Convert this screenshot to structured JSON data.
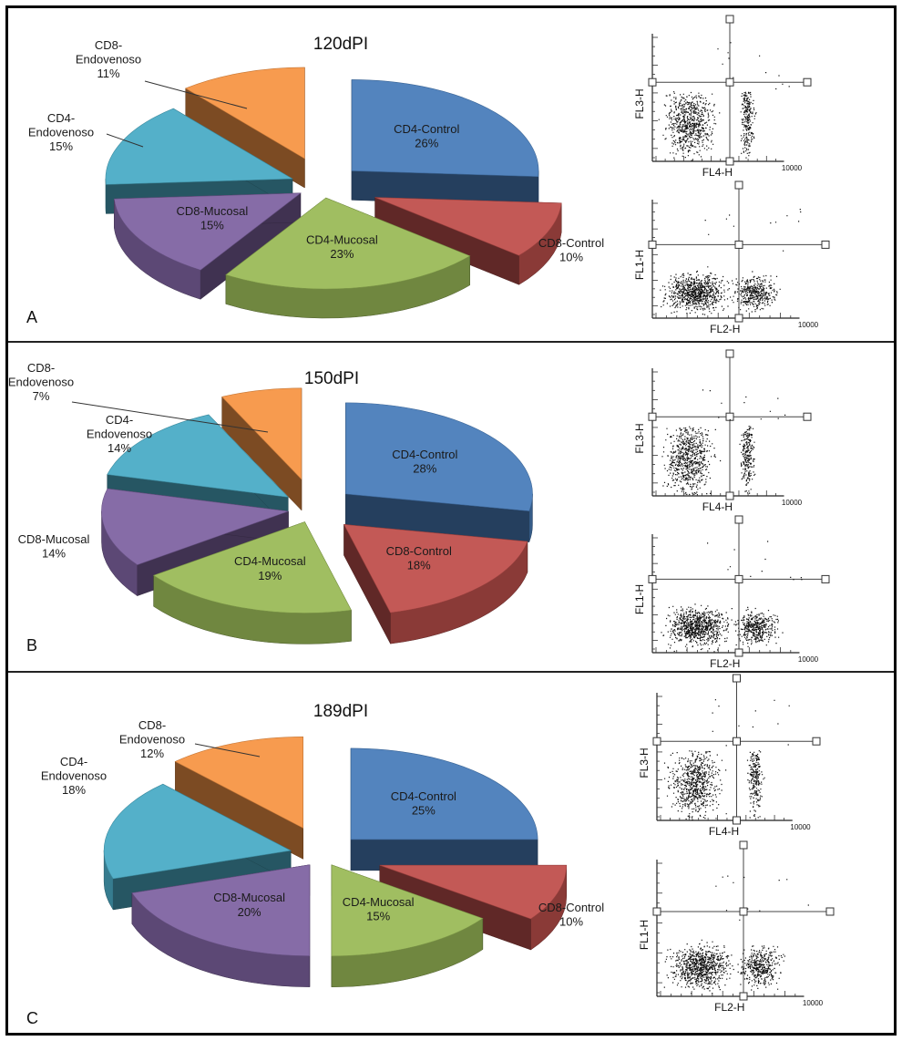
{
  "chart_data": [
    {
      "type": "pie",
      "panel": "A",
      "title": "120dPI",
      "slices": [
        {
          "label": "CD4-Control",
          "value": 26,
          "value_label": "26%",
          "color": "#4a7ebb"
        },
        {
          "label": "CD8-Control",
          "value": 10,
          "value_label": "10%",
          "color": "#c0504d"
        },
        {
          "label": "CD4-Mucosal",
          "value": 23,
          "value_label": "23%",
          "color": "#9bbb59"
        },
        {
          "label": "CD8-Mucosal",
          "value": 15,
          "value_label": "15%",
          "color": "#8064a2"
        },
        {
          "label": "CD4-\nEndovenoso",
          "value": 15,
          "value_label": "15%",
          "color": "#4bacc6"
        },
        {
          "label": "CD8-\nEndovenoso",
          "value": 11,
          "value_label": "11%",
          "color": "#f79646"
        }
      ],
      "scatter_plots": [
        {
          "xlabel": "FL4-H",
          "ylabel": "FL3-H",
          "x_max_label": "10000"
        },
        {
          "xlabel": "FL2-H",
          "ylabel": "FL1-H",
          "x_max_label": "10000"
        }
      ]
    },
    {
      "type": "pie",
      "panel": "B",
      "title": "150dPI",
      "slices": [
        {
          "label": "CD4-Control",
          "value": 28,
          "value_label": "28%",
          "color": "#4a7ebb"
        },
        {
          "label": "CD8-Control",
          "value": 18,
          "value_label": "18%",
          "color": "#c0504d"
        },
        {
          "label": "CD4-Mucosal",
          "value": 19,
          "value_label": "19%",
          "color": "#9bbb59"
        },
        {
          "label": "CD8-Mucosal",
          "value": 14,
          "value_label": "14%",
          "color": "#8064a2"
        },
        {
          "label": "CD4-\nEndovenoso",
          "value": 14,
          "value_label": "14%",
          "color": "#4bacc6"
        },
        {
          "label": "CD8-\nEndovenoso",
          "value": 7,
          "value_label": "7%",
          "color": "#f79646"
        }
      ],
      "scatter_plots": [
        {
          "xlabel": "FL4-H",
          "ylabel": "FL3-H",
          "x_max_label": "10000"
        },
        {
          "xlabel": "FL2-H",
          "ylabel": "FL1-H",
          "x_max_label": "10000"
        }
      ]
    },
    {
      "type": "pie",
      "panel": "C",
      "title": "189dPI",
      "slices": [
        {
          "label": "CD4-Control",
          "value": 25,
          "value_label": "25%",
          "color": "#4a7ebb"
        },
        {
          "label": "CD8-Control",
          "value": 10,
          "value_label": "10%",
          "color": "#c0504d"
        },
        {
          "label": "CD4-Mucosal",
          "value": 15,
          "value_label": "15%",
          "color": "#9bbb59"
        },
        {
          "label": "CD8-Mucosal",
          "value": 20,
          "value_label": "20%",
          "color": "#8064a2"
        },
        {
          "label": "CD4-\nEndovenoso",
          "value": 18,
          "value_label": "18%",
          "color": "#4bacc6"
        },
        {
          "label": "CD8-\nEndovenoso",
          "value": 12,
          "value_label": "12%",
          "color": "#f79646"
        }
      ],
      "scatter_plots": [
        {
          "xlabel": "FL4-H",
          "ylabel": "FL3-H",
          "x_max_label": "10000"
        },
        {
          "xlabel": "FL2-H",
          "ylabel": "FL1-H",
          "x_max_label": "10000"
        }
      ]
    }
  ]
}
